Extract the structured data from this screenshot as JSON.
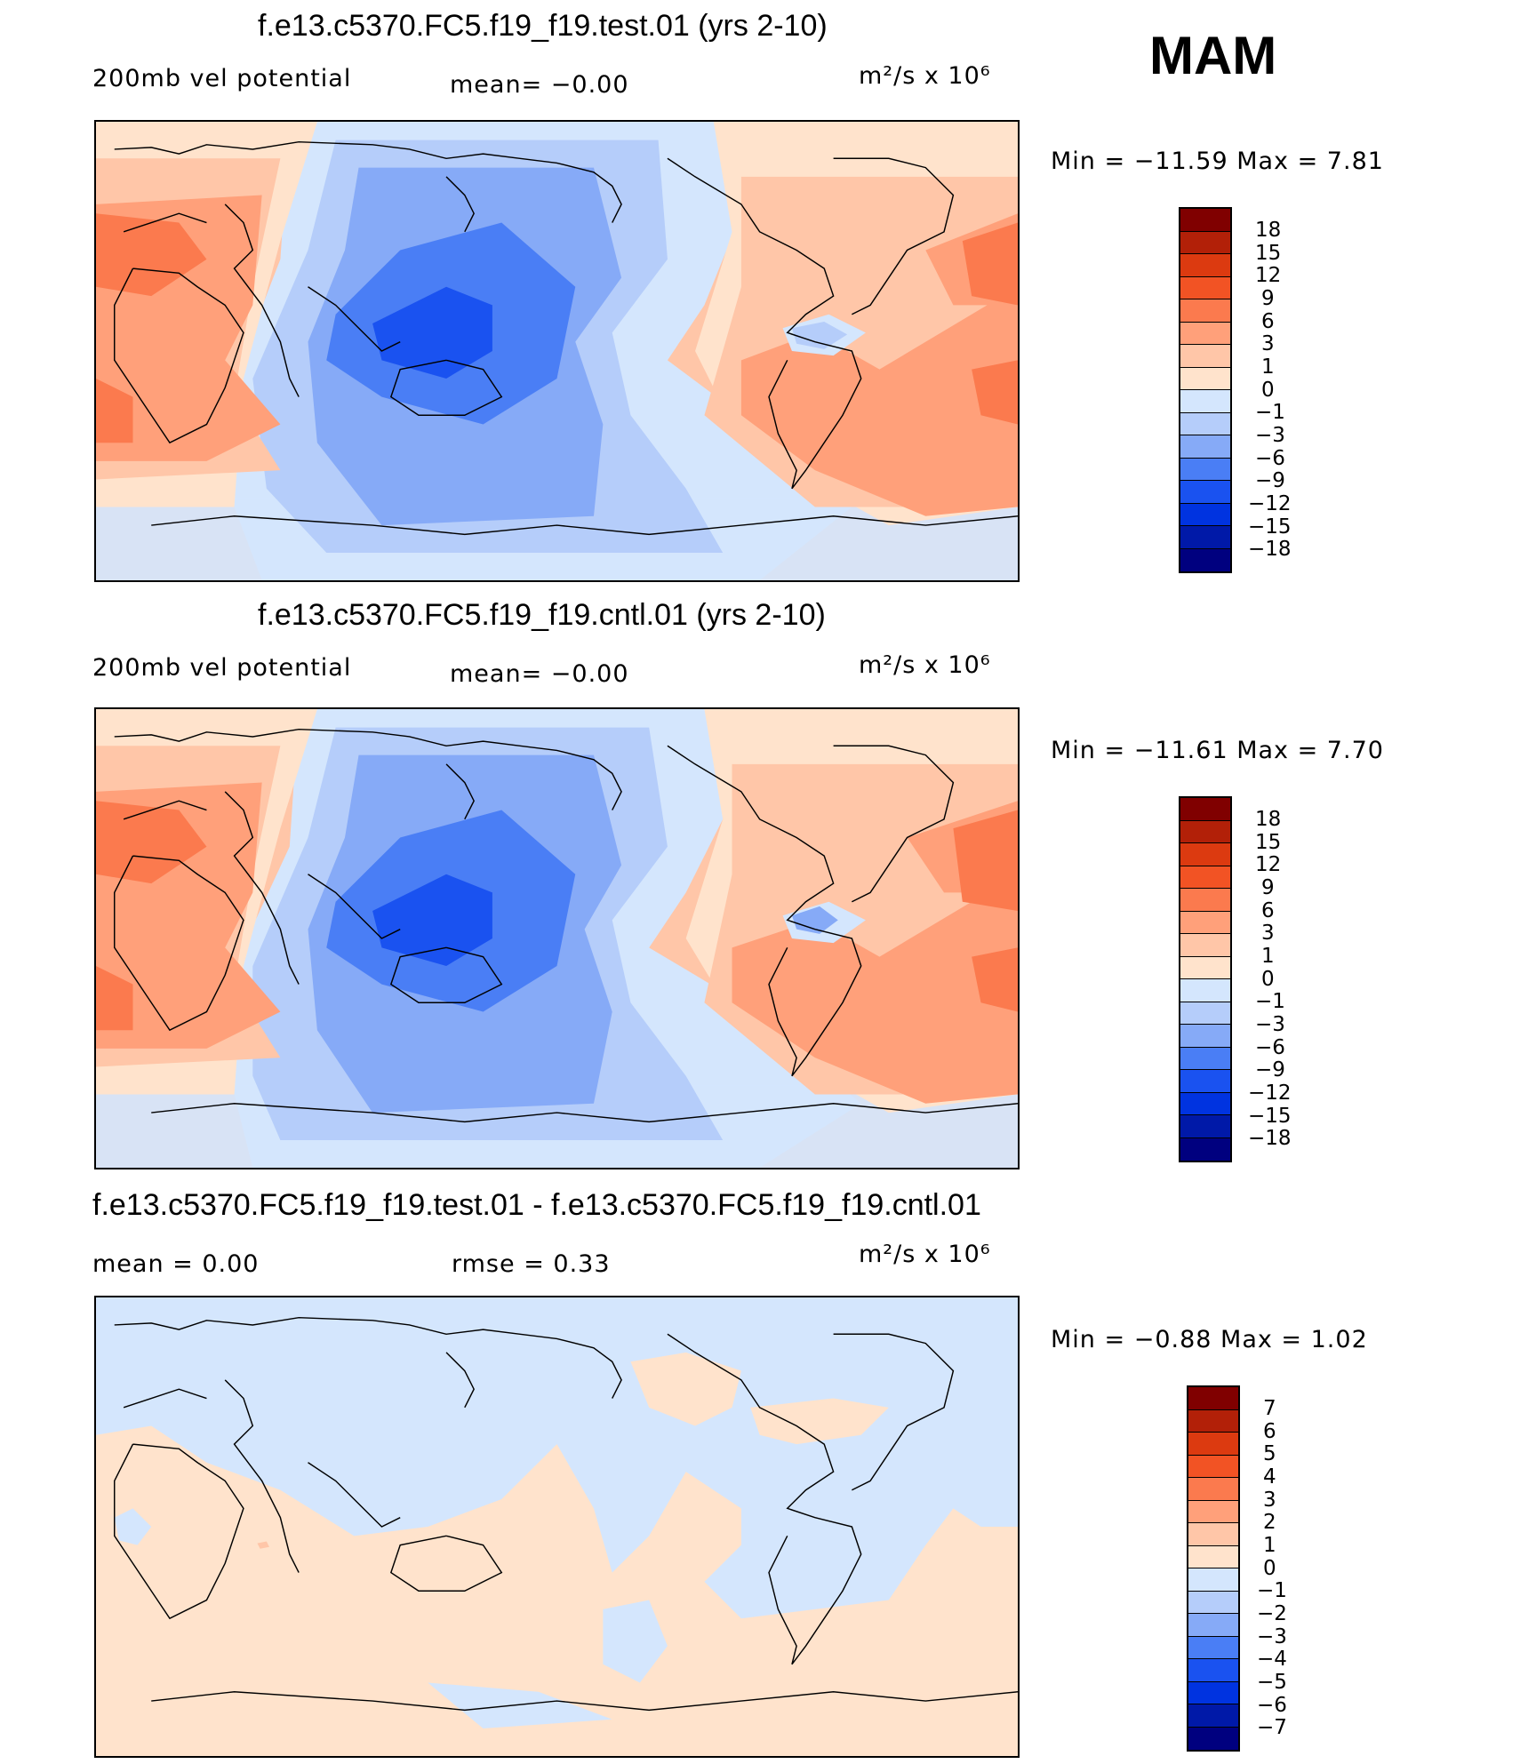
{
  "season": "MAM",
  "colors": {
    "n18": "#00007f",
    "n15": "#0019a8",
    "n12": "#0033e0",
    "n9": "#1a52f0",
    "n6": "#4a7ef5",
    "n3": "#86aaf7",
    "n1": "#b5cdfa",
    "n0": "#d4e6fd",
    "p0": "#ffe3cc",
    "p1": "#ffc6a8",
    "p3": "#ffa07a",
    "p6": "#fb7a4e",
    "p9": "#f25324",
    "p12": "#dc3a10",
    "p15": "#b22008",
    "p18": "#800000"
  },
  "panels": [
    {
      "title": "f.e13.c5370.FC5.f19_f19.test.01 (yrs 2-10)",
      "left_label": "200mb  vel  potential",
      "mid_label": "mean=   −0.00",
      "units": "m²/s  x  10⁶",
      "min_text": "Min  =  −11.59  Max  =     7.81",
      "min": -11.59,
      "max": 7.81,
      "map_name": "test-map",
      "colorbar_labels": [
        "18",
        "15",
        "12",
        "9",
        "6",
        "3",
        "1",
        "0",
        "−1",
        "−3",
        "−6",
        "−9",
        "−12",
        "−15",
        "−18"
      ]
    },
    {
      "title": "f.e13.c5370.FC5.f19_f19.cntl.01 (yrs 2-10)",
      "left_label": "200mb  vel  potential",
      "mid_label": "mean=   −0.00",
      "units": "m²/s  x  10⁶",
      "min_text": "Min  =  −11.61  Max  =     7.70",
      "min": -11.61,
      "max": 7.7,
      "map_name": "cntl-map",
      "colorbar_labels": [
        "18",
        "15",
        "12",
        "9",
        "6",
        "3",
        "1",
        "0",
        "−1",
        "−3",
        "−6",
        "−9",
        "−12",
        "−15",
        "−18"
      ]
    },
    {
      "title": "f.e13.c5370.FC5.f19_f19.test.01 - f.e13.c5370.FC5.f19_f19.cntl.01",
      "left_label": "mean  =      0.00",
      "mid_label": "rmse  =      0.33",
      "units": "m²/s  x  10⁶",
      "min_text": "Min  =      −0.88  Max  =      1.02",
      "min": -0.88,
      "max": 1.02,
      "map_name": "diff-map",
      "colorbar_labels": [
        "7",
        "6",
        "5",
        "4",
        "3",
        "2",
        "1",
        "0",
        "−1",
        "−2",
        "−3",
        "−4",
        "−5",
        "−6",
        "−7"
      ]
    }
  ]
}
